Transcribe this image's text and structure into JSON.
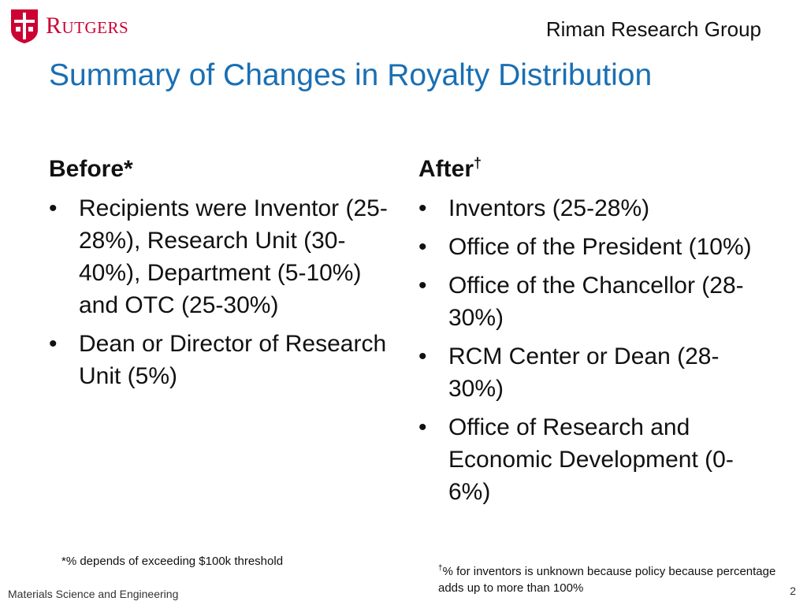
{
  "header": {
    "logo_text": "Rutgers",
    "group_name": "Riman Research Group"
  },
  "slide": {
    "title": "Summary of Changes in Royalty Distribution"
  },
  "before": {
    "heading": "Before*",
    "items": [
      "Recipients were Inventor (25-28%), Research Unit (30-40%), Department (5-10%) and OTC (25-30%)",
      "Dean or Director of Research Unit (5%)"
    ],
    "footnote": "*% depends of exceeding $100k threshold"
  },
  "after": {
    "heading": "After",
    "heading_mark": "†",
    "items": [
      "Inventors (25-28%)",
      "Office of the President (10%)",
      "Office of the Chancellor (28-30%)",
      "RCM Center or Dean (28-30%)",
      "Office of Research and Economic Development (0-6%)"
    ],
    "footnote_mark": "†",
    "footnote": "% for inventors is unknown because policy because percentage adds up to more than 100%"
  },
  "footer": {
    "department": "Materials Science and Engineering",
    "page_number": "2"
  },
  "colors": {
    "title_blue": "#1a6fb3",
    "rutgers_red": "#cc0033"
  }
}
